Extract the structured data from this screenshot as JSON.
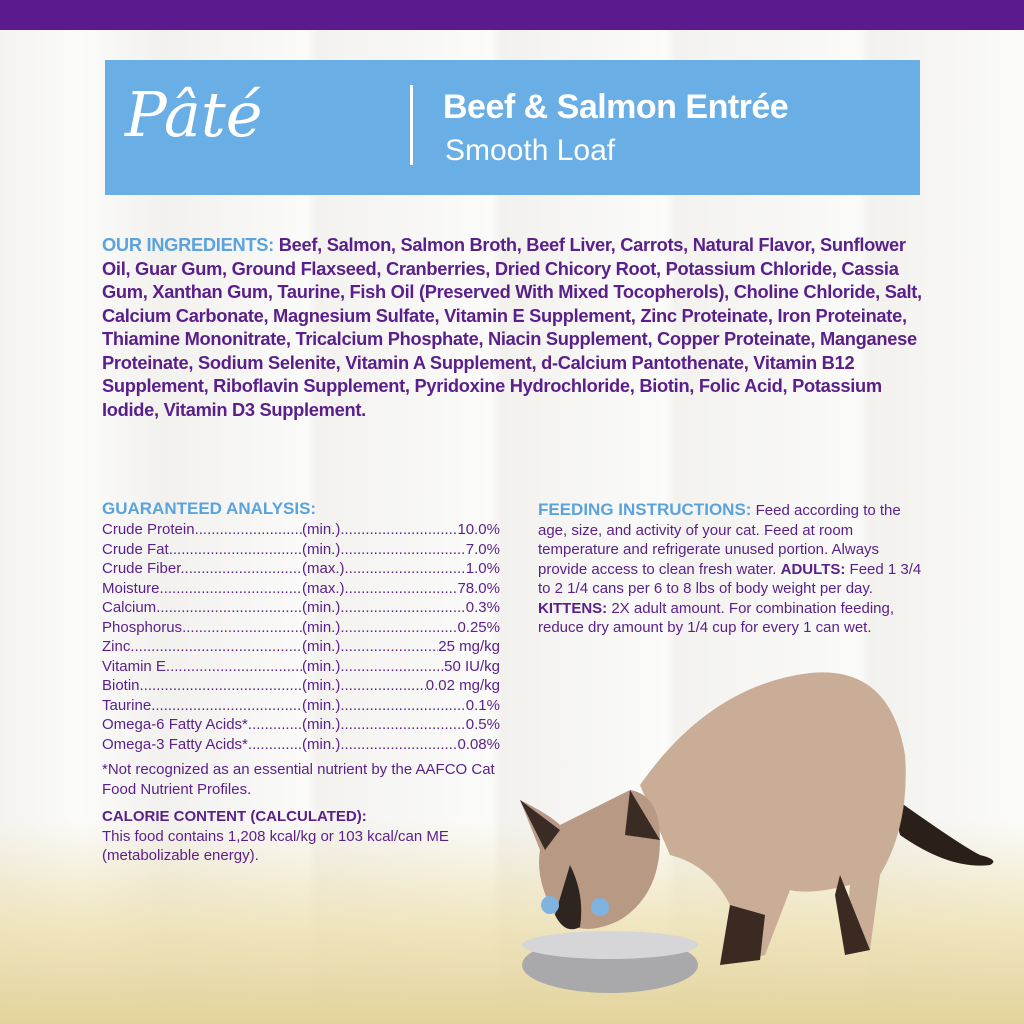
{
  "banner": {
    "style": "Pâté",
    "title": "Beef & Salmon Entrée",
    "subtitle": "Smooth Loaf"
  },
  "ingredients": {
    "heading": "OUR INGREDIENTS:",
    "text": "Beef, Salmon, Salmon Broth, Beef Liver, Carrots, Natural Flavor, Sunflower Oil, Guar Gum, Ground Flaxseed, Cranberries, Dried Chicory Root, Potassium Chloride, Cassia Gum, Xanthan Gum, Taurine, Fish Oil (Preserved With Mixed Tocopherols), Choline Chloride, Salt, Calcium Carbonate, Magnesium Sulfate, Vitamin E Supplement, Zinc Proteinate, Iron Proteinate, Thiamine Mononitrate, Tricalcium Phosphate, Niacin Supplement, Copper Proteinate, Manganese Proteinate, Sodium Selenite, Vitamin A Supplement, d-Calcium Pantothenate, Vitamin B12 Supplement, Riboflavin Supplement, Pyridoxine Hydrochloride, Biotin, Folic Acid, Potassium Iodide, Vitamin D3 Supplement."
  },
  "analysis": {
    "heading": "GUARANTEED ANALYSIS:",
    "rows": [
      {
        "name": "Crude Protein",
        "qual": "(min.)",
        "value": "10.0%"
      },
      {
        "name": "Crude Fat",
        "qual": "(min.)",
        "value": "7.0%"
      },
      {
        "name": "Crude Fiber",
        "qual": "(max.)",
        "value": "1.0%"
      },
      {
        "name": "Moisture",
        "qual": "(max.)",
        "value": "78.0%"
      },
      {
        "name": "Calcium",
        "qual": "(min.)",
        "value": "0.3%"
      },
      {
        "name": "Phosphorus",
        "qual": "(min.)",
        "value": "0.25%"
      },
      {
        "name": "Zinc",
        "qual": "(min.)",
        "value": "25 mg/kg"
      },
      {
        "name": "Vitamin E",
        "qual": "(min.)",
        "value": "50 IU/kg"
      },
      {
        "name": "Biotin",
        "qual": "(min.)",
        "value": "0.02 mg/kg"
      },
      {
        "name": "Taurine",
        "qual": "(min.)",
        "value": "0.1%"
      },
      {
        "name": "Omega-6 Fatty Acids*",
        "qual": "(min.)",
        "value": "0.5%"
      },
      {
        "name": "Omega-3 Fatty Acids*",
        "qual": "(min.)",
        "value": "0.08%"
      }
    ],
    "note": "*Not recognized as an essential nutrient by the AAFCO Cat Food Nutrient Profiles.",
    "calorie_heading": "CALORIE CONTENT (CALCULATED):",
    "calorie_text": "This food contains 1,208 kcal/kg or 103 kcal/can ME (metabolizable energy)."
  },
  "feeding": {
    "heading": "FEEDING INSTRUCTIONS:",
    "text1": "Feed according to the age, size, and activity of your cat. Feed at room temperature and refrigerate unused portion. Always provide access to clean fresh water.",
    "adults_label": "ADULTS:",
    "adults_text": "Feed 1 3/4 to 2 1/4 cans per 6 to 8 lbs of body weight per day.",
    "kittens_label": "KITTENS:",
    "kittens_text": "2X adult amount. For combination feeding, reduce dry amount by 1/4 cup for every 1 can wet."
  },
  "colors": {
    "purple": "#5b1a8e",
    "blue": "#6aaee6",
    "heading_blue": "#5ba3dd"
  }
}
